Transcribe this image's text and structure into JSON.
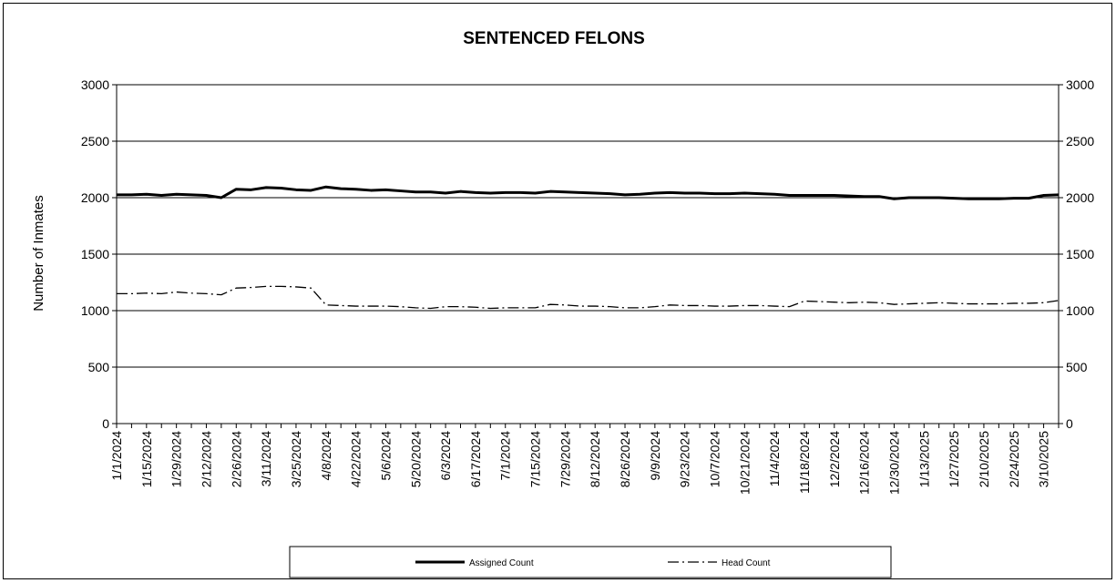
{
  "chart_data": {
    "type": "line",
    "title": "SENTENCED FELONS",
    "xlabel": "",
    "ylabel": "Number of Inmates",
    "ylim": [
      0,
      3000
    ],
    "yticks": [
      0,
      500,
      1000,
      1500,
      2000,
      2500,
      3000
    ],
    "grid": true,
    "legend_position": "bottom",
    "x": [
      "1/1/2024",
      "1/8/2024",
      "1/15/2024",
      "1/22/2024",
      "1/29/2024",
      "2/5/2024",
      "2/12/2024",
      "2/19/2024",
      "2/26/2024",
      "3/4/2024",
      "3/11/2024",
      "3/18/2024",
      "3/25/2024",
      "4/1/2024",
      "4/8/2024",
      "4/15/2024",
      "4/22/2024",
      "4/29/2024",
      "5/6/2024",
      "5/13/2024",
      "5/20/2024",
      "5/27/2024",
      "6/3/2024",
      "6/10/2024",
      "6/17/2024",
      "6/24/2024",
      "7/1/2024",
      "7/8/2024",
      "7/15/2024",
      "7/22/2024",
      "7/29/2024",
      "8/5/2024",
      "8/12/2024",
      "8/19/2024",
      "8/26/2024",
      "9/2/2024",
      "9/9/2024",
      "9/16/2024",
      "9/23/2024",
      "9/30/2024",
      "10/7/2024",
      "10/14/2024",
      "10/21/2024",
      "10/28/2024",
      "11/4/2024",
      "11/11/2024",
      "11/18/2024",
      "11/25/2024",
      "12/2/2024",
      "12/9/2024",
      "12/16/2024",
      "12/23/2024",
      "12/30/2024",
      "1/6/2025",
      "1/13/2025",
      "1/20/2025",
      "1/27/2025",
      "2/3/2025",
      "2/10/2025",
      "2/17/2025",
      "2/24/2025",
      "3/3/2025",
      "3/10/2025",
      "3/17/2025"
    ],
    "xtick_labels": [
      "1/1/2024",
      "1/15/2024",
      "1/29/2024",
      "2/12/2024",
      "2/26/2024",
      "3/11/2024",
      "3/25/2024",
      "4/8/2024",
      "4/22/2024",
      "5/6/2024",
      "5/20/2024",
      "6/3/2024",
      "6/17/2024",
      "7/1/2024",
      "7/15/2024",
      "7/29/2024",
      "8/12/2024",
      "8/26/2024",
      "9/9/2024",
      "9/23/2024",
      "10/7/2024",
      "10/21/2024",
      "11/4/2024",
      "11/18/2024",
      "12/2/2024",
      "12/16/2024",
      "12/30/2024",
      "1/13/2025",
      "1/27/2025",
      "2/10/2025",
      "2/24/2025",
      "3/10/2025"
    ],
    "series": [
      {
        "name": "Assigned Count",
        "style": "solid",
        "color": "#000000",
        "values": [
          2025,
          2025,
          2030,
          2020,
          2030,
          2025,
          2020,
          2000,
          2075,
          2070,
          2090,
          2085,
          2070,
          2065,
          2095,
          2080,
          2075,
          2065,
          2070,
          2060,
          2050,
          2050,
          2040,
          2055,
          2045,
          2040,
          2045,
          2045,
          2040,
          2055,
          2050,
          2045,
          2040,
          2035,
          2025,
          2030,
          2040,
          2045,
          2040,
          2040,
          2035,
          2035,
          2040,
          2035,
          2030,
          2020,
          2020,
          2020,
          2020,
          2015,
          2010,
          2010,
          1990,
          2000,
          2000,
          2000,
          1995,
          1990,
          1990,
          1990,
          1995,
          1995,
          2020,
          2025
        ]
      },
      {
        "name": "Head Count",
        "style": "dash-dot",
        "color": "#000000",
        "values": [
          1150,
          1150,
          1155,
          1150,
          1165,
          1155,
          1150,
          1140,
          1200,
          1205,
          1215,
          1215,
          1210,
          1200,
          1050,
          1045,
          1040,
          1040,
          1040,
          1035,
          1025,
          1020,
          1035,
          1035,
          1030,
          1020,
          1025,
          1025,
          1025,
          1055,
          1050,
          1040,
          1040,
          1035,
          1025,
          1025,
          1035,
          1050,
          1045,
          1045,
          1040,
          1040,
          1045,
          1045,
          1040,
          1035,
          1085,
          1080,
          1075,
          1070,
          1075,
          1070,
          1055,
          1060,
          1065,
          1070,
          1065,
          1060,
          1060,
          1060,
          1065,
          1065,
          1070,
          1090
        ]
      }
    ]
  }
}
